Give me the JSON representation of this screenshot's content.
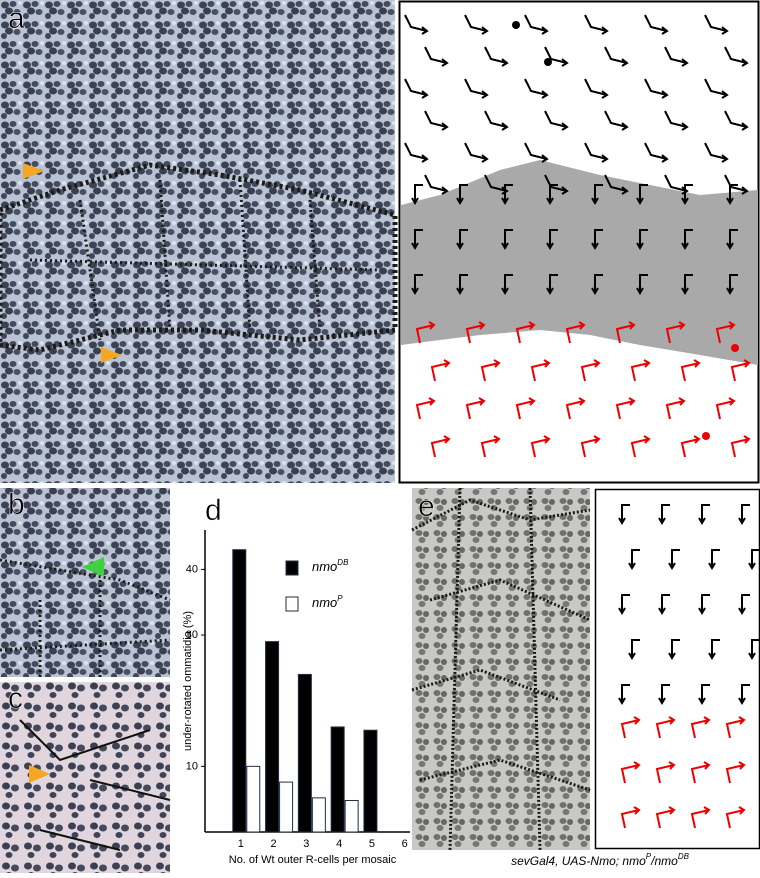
{
  "panels": {
    "a": "a",
    "b": "b",
    "c": "c",
    "d": "d",
    "e": "e"
  },
  "caption": [
    "sevGal4, UAS-Nmo; nmo",
    "P",
    "/nmo",
    "DB"
  ],
  "chart_data": {
    "type": "bar",
    "ylabel": "under-rotated ommatidia (%)",
    "xlabel": "No. of Wt outer R-cells per mosaic",
    "x": [
      1,
      2,
      3,
      4,
      5
    ],
    "series": [
      {
        "name": "nmo",
        "superscript": "DB",
        "color": "#000000",
        "values": [
          43,
          29,
          24,
          16,
          15.5
        ]
      },
      {
        "name": "nmo",
        "superscript": "P",
        "color": "#ffffff",
        "values": [
          10,
          7.6,
          5.2,
          4.8,
          null
        ]
      }
    ],
    "xlim": [
      0,
      6.1
    ],
    "xticks": [
      1,
      2,
      3,
      4,
      5,
      6
    ],
    "ylim": [
      0,
      46
    ],
    "yticks": [
      10,
      30,
      40
    ]
  }
}
